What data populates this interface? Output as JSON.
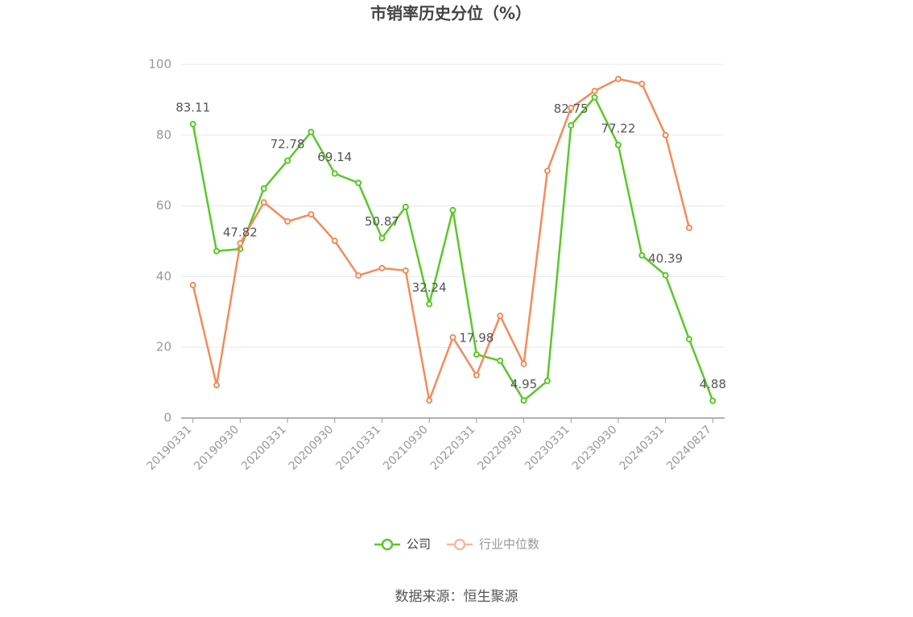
{
  "chart_data": {
    "type": "line",
    "title": "市销率历史分位（%）",
    "source": "数据来源：恒生聚源",
    "categories": [
      "20190331",
      null,
      "20190930",
      null,
      "20200331",
      null,
      "20200930",
      null,
      "20210331",
      null,
      "20210930",
      null,
      "20220331",
      null,
      "20220930",
      null,
      "20230331",
      null,
      "20230930",
      null,
      "20240331",
      null,
      "20240827"
    ],
    "series": [
      {
        "name": "公司",
        "color": "#5cc72a",
        "values": [
          83.11,
          47.2,
          47.82,
          64.9,
          72.78,
          80.9,
          69.14,
          66.5,
          50.87,
          59.7,
          32.24,
          58.8,
          17.98,
          16.2,
          4.95,
          10.5,
          82.75,
          90.7,
          77.22,
          46.0,
          40.39,
          22.3,
          4.88
        ],
        "value_labels": [
          "83.11",
          null,
          "47.82",
          null,
          "72.78",
          null,
          "69.14",
          null,
          "50.87",
          null,
          "32.24",
          null,
          "17.98",
          null,
          "4.95",
          null,
          "82.75",
          null,
          "77.22",
          null,
          "40.39",
          null,
          "4.88"
        ]
      },
      {
        "name": "行业中位数",
        "color": "#f28c5b",
        "values": [
          37.6,
          9.3,
          49.4,
          61.0,
          55.6,
          57.6,
          50.1,
          40.3,
          42.4,
          41.7,
          5.0,
          22.8,
          12.1,
          28.9,
          15.3,
          69.9,
          87.7,
          92.5,
          95.9,
          94.5,
          80.0,
          53.8,
          null
        ]
      }
    ],
    "ylim": [
      0,
      100
    ],
    "yticks": [
      0,
      20,
      40,
      60,
      80,
      100
    ],
    "grid": true,
    "legend": "bottom"
  }
}
